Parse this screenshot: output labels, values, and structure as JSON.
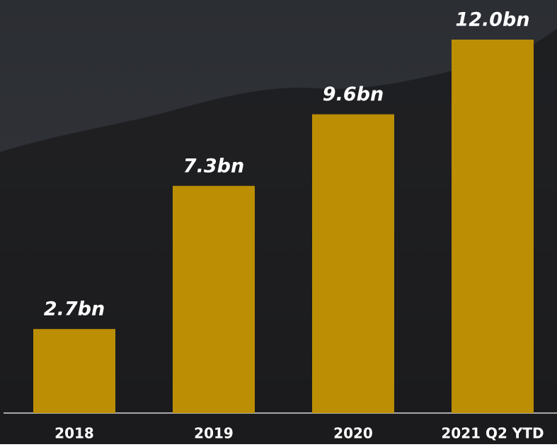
{
  "chart_data": {
    "type": "bar",
    "categories": [
      "2018",
      "2019",
      "2020",
      "2021 Q2 YTD"
    ],
    "values": [
      2.7,
      7.3,
      9.6,
      12
    ],
    "value_labels": [
      "2.7bn",
      "7.3bn",
      "9.6bn",
      "12.0bn"
    ],
    "color": "#bb8e04"
  }
}
